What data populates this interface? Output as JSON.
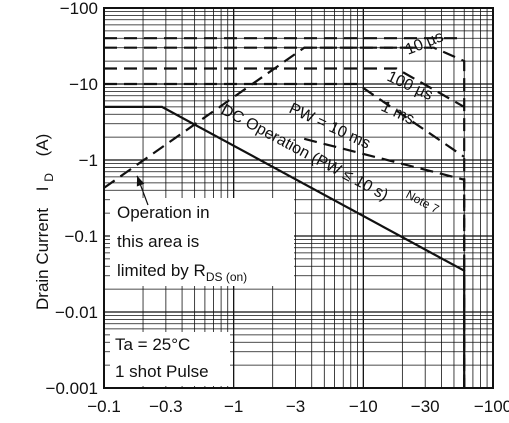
{
  "chart_data": {
    "type": "line",
    "title": "",
    "xlabel": "",
    "ylabel": "Drain Current",
    "ylabel_symbol": "I",
    "ylabel_subscript": "D",
    "ylabel_unit": "(A)",
    "x_scale": "log",
    "y_scale": "log",
    "xlim": [
      -0.1,
      -100
    ],
    "ylim": [
      -0.001,
      -100
    ],
    "grid": true,
    "x_ticks": [
      {
        "value": -0.1,
        "label": "−0.1"
      },
      {
        "value": -0.3,
        "label": "−0.3"
      },
      {
        "value": -1,
        "label": "−1"
      },
      {
        "value": -3,
        "label": "−3"
      },
      {
        "value": -10,
        "label": "−10"
      },
      {
        "value": -30,
        "label": "−30"
      },
      {
        "value": -100,
        "label": "−100"
      }
    ],
    "y_ticks": [
      {
        "value": -100,
        "label": "−100"
      },
      {
        "value": -10,
        "label": "−10"
      },
      {
        "value": -1,
        "label": "−1"
      },
      {
        "value": -0.1,
        "label": "−0.1"
      },
      {
        "value": -0.01,
        "label": "−0.01"
      },
      {
        "value": -0.001,
        "label": "−0.001"
      }
    ],
    "series": [
      {
        "name": "DC Operation (PW ≤ 10 s)",
        "style": "solid",
        "x": [
          -0.1,
          -0.28,
          -60,
          -60
        ],
        "y": [
          -5,
          -5,
          -0.035,
          -0.001
        ]
      },
      {
        "name": "PW = 10 ms",
        "style": "dashed",
        "x": [
          -3.5,
          -60,
          -60
        ],
        "y": [
          -1.9,
          -0.55,
          -0.001
        ]
      },
      {
        "name": "1 ms",
        "style": "dashed",
        "x": [
          -0.1,
          -9,
          -60
        ],
        "y": [
          -10,
          -10,
          -1.1
        ]
      },
      {
        "name": "100 µs",
        "style": "dashed",
        "x": [
          -0.1,
          -18,
          -60
        ],
        "y": [
          -16,
          -16,
          -5
        ]
      },
      {
        "name": "10 µs",
        "style": "dashed",
        "x": [
          -0.1,
          -35,
          -60,
          -60
        ],
        "y": [
          -30,
          -30,
          -20,
          -0.001
        ]
      },
      {
        "name": "",
        "style": "dashed",
        "x": [
          -0.1,
          -60
        ],
        "y": [
          -40,
          -40
        ]
      },
      {
        "name": "",
        "style": "dashed",
        "x": [
          -0.1,
          -3.5,
          -25
        ],
        "y": [
          -0.43,
          -30,
          -30
        ]
      }
    ],
    "annotations": {
      "note": "Note 7",
      "limit_text": [
        "Operation in",
        "this area is",
        "limited by R"
      ],
      "limit_subscript": "DS (on)",
      "conditions": [
        "Ta = 25°C",
        "1 shot Pulse"
      ],
      "arrow_to": {
        "x": -0.18,
        "y": -0.7
      }
    }
  }
}
